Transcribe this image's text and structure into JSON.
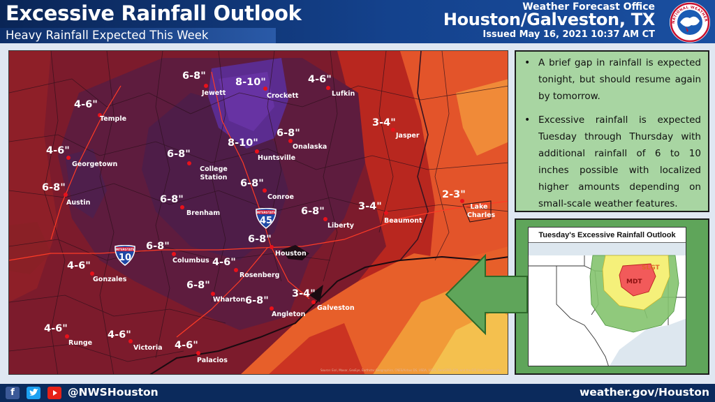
{
  "header": {
    "title": "Excessive Rainfall Outlook",
    "subtitle": "Heavy Rainfall Expected This Week",
    "office_label": "Weather Forecast Office",
    "office_name": "Houston/Galveston, TX",
    "issued": "Issued May 16, 2021 10:37 AM CT",
    "logo_text": "NATIONAL WEATHER SERVICE"
  },
  "map": {
    "amounts": [
      {
        "id": "jewett-amt",
        "text": "6-8\""
      },
      {
        "id": "crockett-amt",
        "text": "8-10\""
      },
      {
        "id": "lufkin-amt",
        "text": "4-6\""
      },
      {
        "id": "temple-amt",
        "text": "4-6\""
      },
      {
        "id": "jasper-amt",
        "text": "3-4\""
      },
      {
        "id": "onalaska-amt",
        "text": "6-8\""
      },
      {
        "id": "georgetown-amt",
        "text": "4-6\""
      },
      {
        "id": "huntsville-amt",
        "text": "8-10\""
      },
      {
        "id": "college-station-amt",
        "text": "6-8\""
      },
      {
        "id": "austin-amt",
        "text": "6-8\""
      },
      {
        "id": "conroe-amt",
        "text": "6-8\""
      },
      {
        "id": "lake-charles-amt",
        "text": "2-3\""
      },
      {
        "id": "brenham-amt",
        "text": "6-8\""
      },
      {
        "id": "beaumont-amt",
        "text": "3-4\""
      },
      {
        "id": "liberty-amt",
        "text": "6-8\""
      },
      {
        "id": "houston-amt",
        "text": "6-8\""
      },
      {
        "id": "columbus-amt",
        "text": "6-8\""
      },
      {
        "id": "gonzales-amt",
        "text": "4-6\""
      },
      {
        "id": "rosenberg-amt",
        "text": "4-6\""
      },
      {
        "id": "wharton-amt",
        "text": "6-8\""
      },
      {
        "id": "galveston-amt",
        "text": "3-4\""
      },
      {
        "id": "angleton-amt",
        "text": "6-8\""
      },
      {
        "id": "runge-amt",
        "text": "4-6\""
      },
      {
        "id": "victoria-amt",
        "text": "4-6\""
      },
      {
        "id": "palacios-amt",
        "text": "4-6\""
      }
    ],
    "cities": [
      {
        "id": "jewett",
        "name": "Jewett"
      },
      {
        "id": "crockett",
        "name": "Crockett"
      },
      {
        "id": "lufkin",
        "name": "Lufkin"
      },
      {
        "id": "temple",
        "name": "Temple"
      },
      {
        "id": "jasper",
        "name": "Jasper"
      },
      {
        "id": "onalaska",
        "name": "Onalaska"
      },
      {
        "id": "georgetown",
        "name": "Georgetown"
      },
      {
        "id": "huntsville",
        "name": "Huntsville"
      },
      {
        "id": "college-station",
        "name": "College Station"
      },
      {
        "id": "austin",
        "name": "Austin"
      },
      {
        "id": "conroe",
        "name": "Conroe"
      },
      {
        "id": "lake-charles",
        "name": "Lake Charles"
      },
      {
        "id": "brenham",
        "name": "Brenham"
      },
      {
        "id": "beaumont",
        "name": "Beaumont"
      },
      {
        "id": "liberty",
        "name": "Liberty"
      },
      {
        "id": "houston",
        "name": "Houston"
      },
      {
        "id": "columbus",
        "name": "Columbus"
      },
      {
        "id": "gonzales",
        "name": "Gonzales"
      },
      {
        "id": "rosenberg",
        "name": "Rosenberg"
      },
      {
        "id": "wharton",
        "name": "Wharton"
      },
      {
        "id": "galveston",
        "name": "Galveston"
      },
      {
        "id": "angleton",
        "name": "Angleton"
      },
      {
        "id": "runge",
        "name": "Runge"
      },
      {
        "id": "victoria",
        "name": "Victoria"
      },
      {
        "id": "palacios",
        "name": "Palacios"
      }
    ],
    "interstates": [
      {
        "id": "i45",
        "header": "INTERSTATE",
        "number": "45"
      },
      {
        "id": "i10",
        "header": "INTERSTATE",
        "number": "10"
      }
    ],
    "attribution": "Source: Esri, Maxar, GeoEye, Earthstar Geographics, CNES/Airbus DS, USDA, USGS, AeroGRID, IGN, and the GIS User Community"
  },
  "info": {
    "bullets": [
      "A brief gap in rainfall is expected tonight, but should resume again by tomorrow.",
      "Excessive rainfall is expected Tuesday through Thursday with additional rainfall of 6 to 10 inches possible with localized higher amounts depending on small-scale weather features."
    ]
  },
  "inset": {
    "title": "Tuesday's Excessive Rainfall Outlook",
    "slight_label": "SLGT",
    "moderate_label": "MDT"
  },
  "footer": {
    "handle": "@NWSHouston",
    "website": "weather.gov/Houston"
  },
  "colors": {
    "moderate_purple": "#5a2f8f",
    "heavy_dark": "#5c1c3c",
    "mid_red": "#8b1a2a",
    "light_red": "#cc2e1e",
    "orange": "#e9622a",
    "yellow": "#f3bd4d",
    "header_blue": "#14428d",
    "info_green": "#a8d5a2"
  }
}
